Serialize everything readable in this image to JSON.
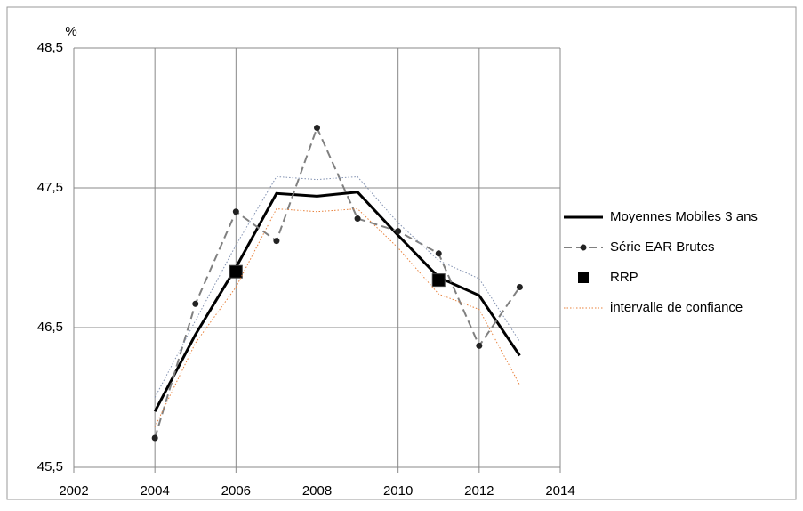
{
  "chart_data": {
    "type": "line",
    "y_unit": "%",
    "x": [
      2004,
      2005,
      2006,
      2007,
      2008,
      2009,
      2010,
      2011,
      2012,
      2013
    ],
    "xlim": [
      2002,
      2014
    ],
    "xticks": [
      2002,
      2004,
      2006,
      2008,
      2010,
      2012,
      2014
    ],
    "ylim": [
      45.5,
      48.5
    ],
    "yticks": [
      {
        "value": 45.5,
        "label": "45,5"
      },
      {
        "value": 46.5,
        "label": "46,5"
      },
      {
        "value": 47.5,
        "label": "47,5"
      },
      {
        "value": 48.5,
        "label": "48,5"
      }
    ],
    "grid": true,
    "legend": "right",
    "series": [
      {
        "name": "Moyennes Mobiles 3 ans",
        "color": "#000000",
        "style": "solid",
        "values": [
          45.9,
          46.45,
          46.93,
          47.46,
          47.44,
          47.47,
          47.16,
          46.86,
          46.73,
          46.3
        ]
      },
      {
        "name": "Série EAR Brutes",
        "color": "#808080",
        "style": "dashed",
        "values": [
          45.71,
          46.67,
          47.33,
          47.12,
          47.93,
          47.28,
          47.19,
          47.03,
          46.37,
          46.79
        ]
      },
      {
        "name": "RRP",
        "color": "#000000",
        "style": "marker",
        "values": [
          null,
          null,
          46.9,
          null,
          null,
          null,
          null,
          46.84,
          null,
          null
        ]
      },
      {
        "name": "intervalle de confiance",
        "color": "#e8803a",
        "style": "dotted",
        "values": [
          45.79,
          46.39,
          46.79,
          47.35,
          47.33,
          47.35,
          47.07,
          46.74,
          46.63,
          46.09
        ],
        "upper_color": "#8090b0",
        "upper_values": [
          46.0,
          46.55,
          47.09,
          47.58,
          47.56,
          47.58,
          47.25,
          46.98,
          46.85,
          46.4
        ]
      }
    ]
  }
}
